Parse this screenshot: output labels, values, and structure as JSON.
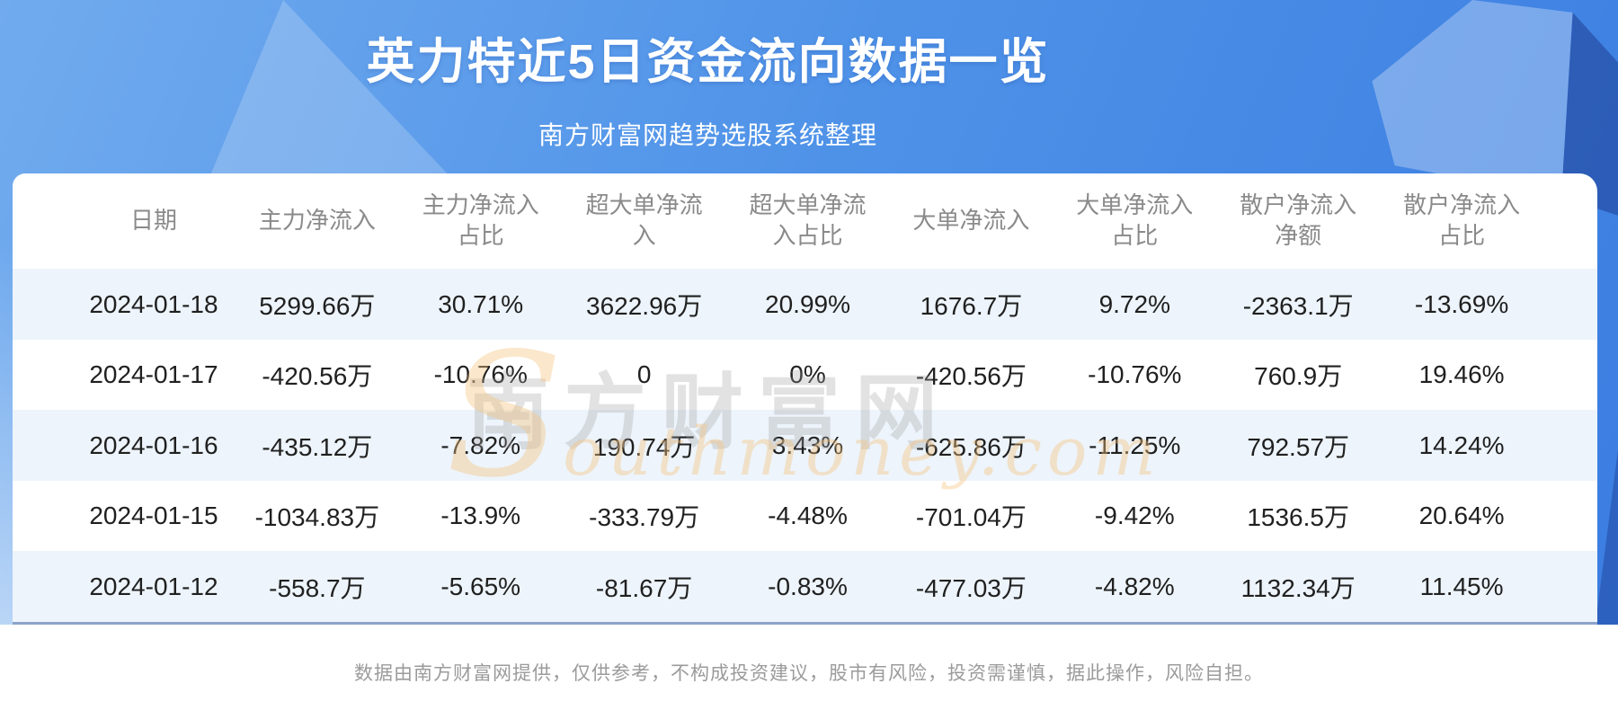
{
  "header": {
    "title": "英力特近5日资金流向数据一览",
    "subtitle": "南方财富网趋势选股系统整理"
  },
  "table": {
    "columns": [
      "日期",
      "主力净流入",
      "主力净流入\n占比",
      "超大单净流\n入",
      "超大单净流\n入占比",
      "大单净流入",
      "大单净流入\n占比",
      "散户净流入\n净额",
      "散户净流入\n占比"
    ],
    "rows": [
      [
        "2024-01-18",
        "5299.66万",
        "30.71%",
        "3622.96万",
        "20.99%",
        "1676.7万",
        "9.72%",
        "-2363.1万",
        "-13.69%"
      ],
      [
        "2024-01-17",
        "-420.56万",
        "-10.76%",
        "0",
        "0%",
        "-420.56万",
        "-10.76%",
        "760.9万",
        "19.46%"
      ],
      [
        "2024-01-16",
        "-435.12万",
        "-7.82%",
        "190.74万",
        "3.43%",
        "-625.86万",
        "-11.25%",
        "792.57万",
        "14.24%"
      ],
      [
        "2024-01-15",
        "-1034.83万",
        "-13.9%",
        "-333.79万",
        "-4.48%",
        "-701.04万",
        "-9.42%",
        "1536.5万",
        "20.64%"
      ],
      [
        "2024-01-12",
        "-558.7万",
        "-5.65%",
        "-81.67万",
        "-0.83%",
        "-477.03万",
        "-4.82%",
        "1132.34万",
        "11.45%"
      ]
    ]
  },
  "chart_data": {
    "type": "table",
    "title": "英力特近5日资金流向数据一览",
    "subtitle": "南方财富网趋势选股系统整理",
    "columns": [
      "日期",
      "主力净流入",
      "主力净流入占比",
      "超大单净流入",
      "超大单净流入占比",
      "大单净流入",
      "大单净流入占比",
      "散户净流入净额",
      "散户净流入占比"
    ],
    "rows": [
      [
        "2024-01-18",
        "5299.66万",
        "30.71%",
        "3622.96万",
        "20.99%",
        "1676.7万",
        "9.72%",
        "-2363.1万",
        "-13.69%"
      ],
      [
        "2024-01-17",
        "-420.56万",
        "-10.76%",
        "0",
        "0%",
        "-420.56万",
        "-10.76%",
        "760.9万",
        "19.46%"
      ],
      [
        "2024-01-16",
        "-435.12万",
        "-7.82%",
        "190.74万",
        "3.43%",
        "-625.86万",
        "-11.25%",
        "792.57万",
        "14.24%"
      ],
      [
        "2024-01-15",
        "-1034.83万",
        "-13.9%",
        "-333.79万",
        "-4.48%",
        "-701.04万",
        "-9.42%",
        "1536.5万",
        "20.64%"
      ],
      [
        "2024-01-12",
        "-558.7万",
        "-5.65%",
        "-81.67万",
        "-0.83%",
        "-477.03万",
        "-4.82%",
        "1132.34万",
        "11.45%"
      ]
    ]
  },
  "watermark": {
    "cn": "南方财富网",
    "en_initial": "S",
    "en_rest": "outhmoney.com"
  },
  "footer": {
    "disclaimer": "数据由南方财富网提供，仅供参考，不构成投资建议，股市有风险，投资需谨慎，据此操作，风险自担。"
  },
  "colors": {
    "bg_blue_light": "#71ABEE",
    "bg_blue_dark": "#3B7DE1",
    "row_alt": "#EDF4FB",
    "header_text": "#8A8A8A",
    "cell_text": "#202020",
    "title_text": "#FFFFFF",
    "footer_text": "#9B9B9B",
    "divider": "#8BA3C9",
    "watermark_gray": "#AAAAAA",
    "watermark_orange": "#F4C37D"
  }
}
